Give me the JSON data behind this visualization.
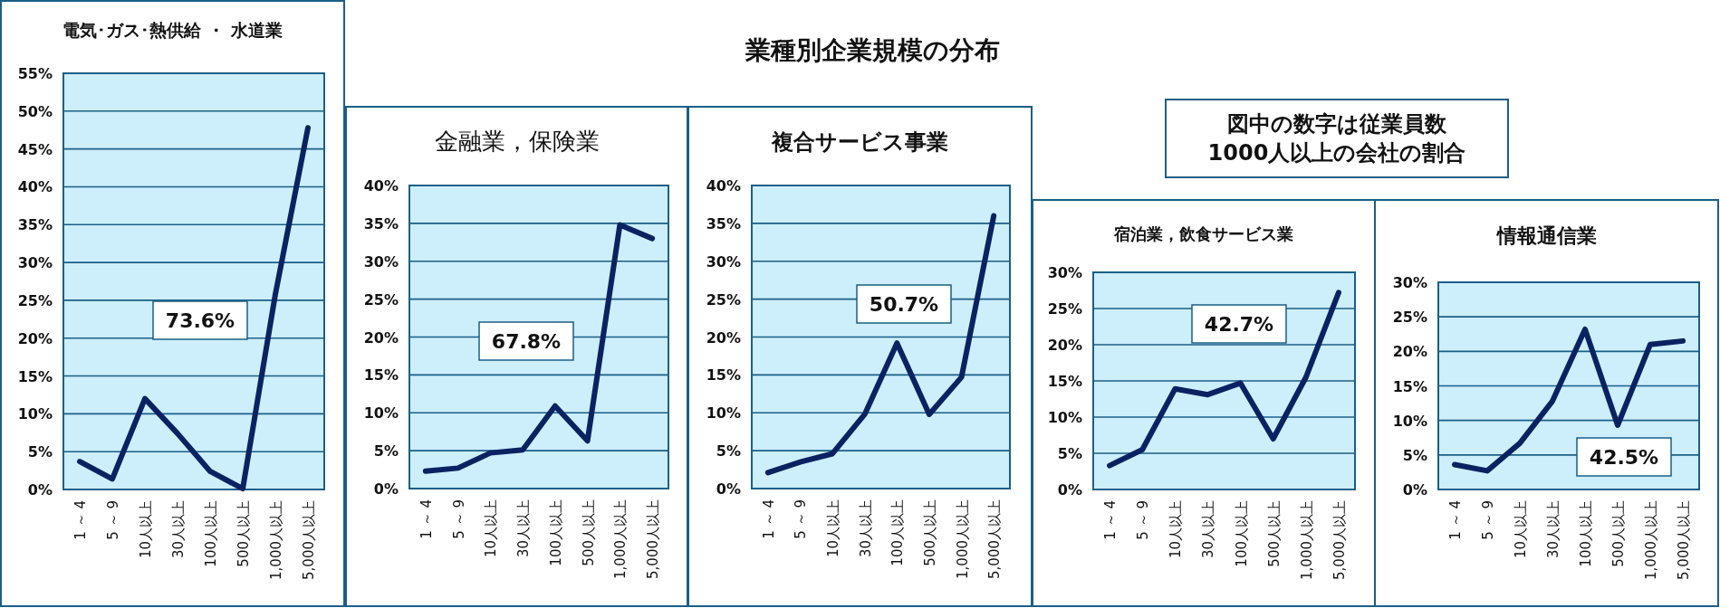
{
  "chart_data": [
    {
      "type": "line",
      "title": "電気･ガス･熱供給 ・ 水道業",
      "categories": [
        "1 ～ 4",
        "5 ～ 9",
        "10人以上",
        "30人以上",
        "100人以上",
        "500人以上",
        "1,000人以上",
        "5,000人以上"
      ],
      "series": [
        {
          "color": "#0b2262",
          "values": [
            3.7,
            1.4,
            12.0,
            7.4,
            2.4,
            0.1,
            25.8,
            47.8
          ]
        }
      ],
      "ylim": [
        0,
        55
      ],
      "yticks": [
        {
          "value": 0,
          "label": "0%"
        },
        {
          "value": 5,
          "label": "5%"
        },
        {
          "value": 10,
          "label": "10%"
        },
        {
          "value": 15,
          "label": "15%"
        },
        {
          "value": 20,
          "label": "20%"
        },
        {
          "value": 25,
          "label": "25%"
        },
        {
          "value": 30,
          "label": "30%"
        },
        {
          "value": 35,
          "label": "35%"
        },
        {
          "value": 40,
          "label": "40%"
        },
        {
          "value": 45,
          "label": "45%"
        },
        {
          "value": 50,
          "label": "50%"
        },
        {
          "value": 55,
          "label": "55%"
        }
      ],
      "grid": "y",
      "marker": "none",
      "line_style": "solid",
      "annotations": [
        "73.6%"
      ]
    },
    {
      "type": "line",
      "title": "金融業，保険業",
      "categories": [
        "1 ～ 4",
        "5 ～ 9",
        "10人以上",
        "30人以上",
        "100人以上",
        "500人以上",
        "1,000人以上",
        "5,000人以上"
      ],
      "series": [
        {
          "color": "#0b2262",
          "values": [
            2.3,
            2.7,
            4.7,
            5.1,
            10.9,
            6.3,
            34.8,
            33.0
          ]
        }
      ],
      "ylim": [
        0,
        40
      ],
      "yticks": [
        {
          "value": 0,
          "label": "0%"
        },
        {
          "value": 5,
          "label": "5%"
        },
        {
          "value": 10,
          "label": "10%"
        },
        {
          "value": 15,
          "label": "15%"
        },
        {
          "value": 20,
          "label": "20%"
        },
        {
          "value": 25,
          "label": "25%"
        },
        {
          "value": 30,
          "label": "30%"
        },
        {
          "value": 35,
          "label": "35%"
        },
        {
          "value": 40,
          "label": "40%"
        }
      ],
      "grid": "y",
      "marker": "none",
      "line_style": "solid",
      "annotations": [
        "67.8%"
      ]
    },
    {
      "type": "line",
      "title": "複合サービス事業",
      "categories": [
        "1 ～ 4",
        "5 ～ 9",
        "10人以上",
        "30人以上",
        "100人以上",
        "500人以上",
        "1,000人以上",
        "5,000人以上"
      ],
      "series": [
        {
          "color": "#0b2262",
          "values": [
            2.1,
            3.5,
            4.6,
            9.8,
            19.2,
            9.8,
            14.7,
            36.0
          ]
        }
      ],
      "ylim": [
        0,
        40
      ],
      "yticks": [
        {
          "value": 0,
          "label": "0%"
        },
        {
          "value": 5,
          "label": "5%"
        },
        {
          "value": 10,
          "label": "10%"
        },
        {
          "value": 15,
          "label": "15%"
        },
        {
          "value": 20,
          "label": "20%"
        },
        {
          "value": 25,
          "label": "25%"
        },
        {
          "value": 30,
          "label": "30%"
        },
        {
          "value": 35,
          "label": "35%"
        },
        {
          "value": 40,
          "label": "40%"
        }
      ],
      "grid": "y",
      "marker": "none",
      "line_style": "solid",
      "annotations": [
        "50.7%"
      ]
    },
    {
      "type": "line",
      "title": "宿泊業，飲食サービス業",
      "categories": [
        "1 ～ 4",
        "5 ～ 9",
        "10人以上",
        "30人以上",
        "100人以上",
        "500人以上",
        "1,000人以上",
        "5,000人以上"
      ],
      "series": [
        {
          "color": "#0b2262",
          "values": [
            3.3,
            5.5,
            13.9,
            13.1,
            14.7,
            7.0,
            15.5,
            27.2
          ]
        }
      ],
      "ylim": [
        0,
        30
      ],
      "yticks": [
        {
          "value": 0,
          "label": "0%"
        },
        {
          "value": 5,
          "label": "5%"
        },
        {
          "value": 10,
          "label": "10%"
        },
        {
          "value": 15,
          "label": "15%"
        },
        {
          "value": 20,
          "label": "20%"
        },
        {
          "value": 25,
          "label": "25%"
        },
        {
          "value": 30,
          "label": "30%"
        }
      ],
      "grid": "y",
      "marker": "none",
      "line_style": "solid",
      "annotations": [
        "42.7%"
      ]
    },
    {
      "type": "line",
      "title": "情報通信業",
      "categories": [
        "1 ～ 4",
        "5 ～ 9",
        "10人以上",
        "30人以上",
        "100人以上",
        "500人以上",
        "1,000人以上",
        "5,000人以上"
      ],
      "series": [
        {
          "color": "#0b2262",
          "values": [
            3.6,
            2.7,
            6.7,
            12.8,
            23.2,
            9.3,
            21.0,
            21.5
          ]
        }
      ],
      "ylim": [
        0,
        30
      ],
      "yticks": [
        {
          "value": 0,
          "label": "0%"
        },
        {
          "value": 5,
          "label": "5%"
        },
        {
          "value": 10,
          "label": "10%"
        },
        {
          "value": 15,
          "label": "15%"
        },
        {
          "value": 20,
          "label": "20%"
        },
        {
          "value": 25,
          "label": "25%"
        },
        {
          "value": 30,
          "label": "30%"
        }
      ],
      "grid": "y",
      "marker": "none",
      "line_style": "solid",
      "annotations": [
        "42.5%"
      ]
    },
    {
      "type": "other",
      "title": "業種別企業規模の分布",
      "annotations": [
        "図中の数字は従業員数\n1000人以上の会社の割合"
      ]
    }
  ]
}
